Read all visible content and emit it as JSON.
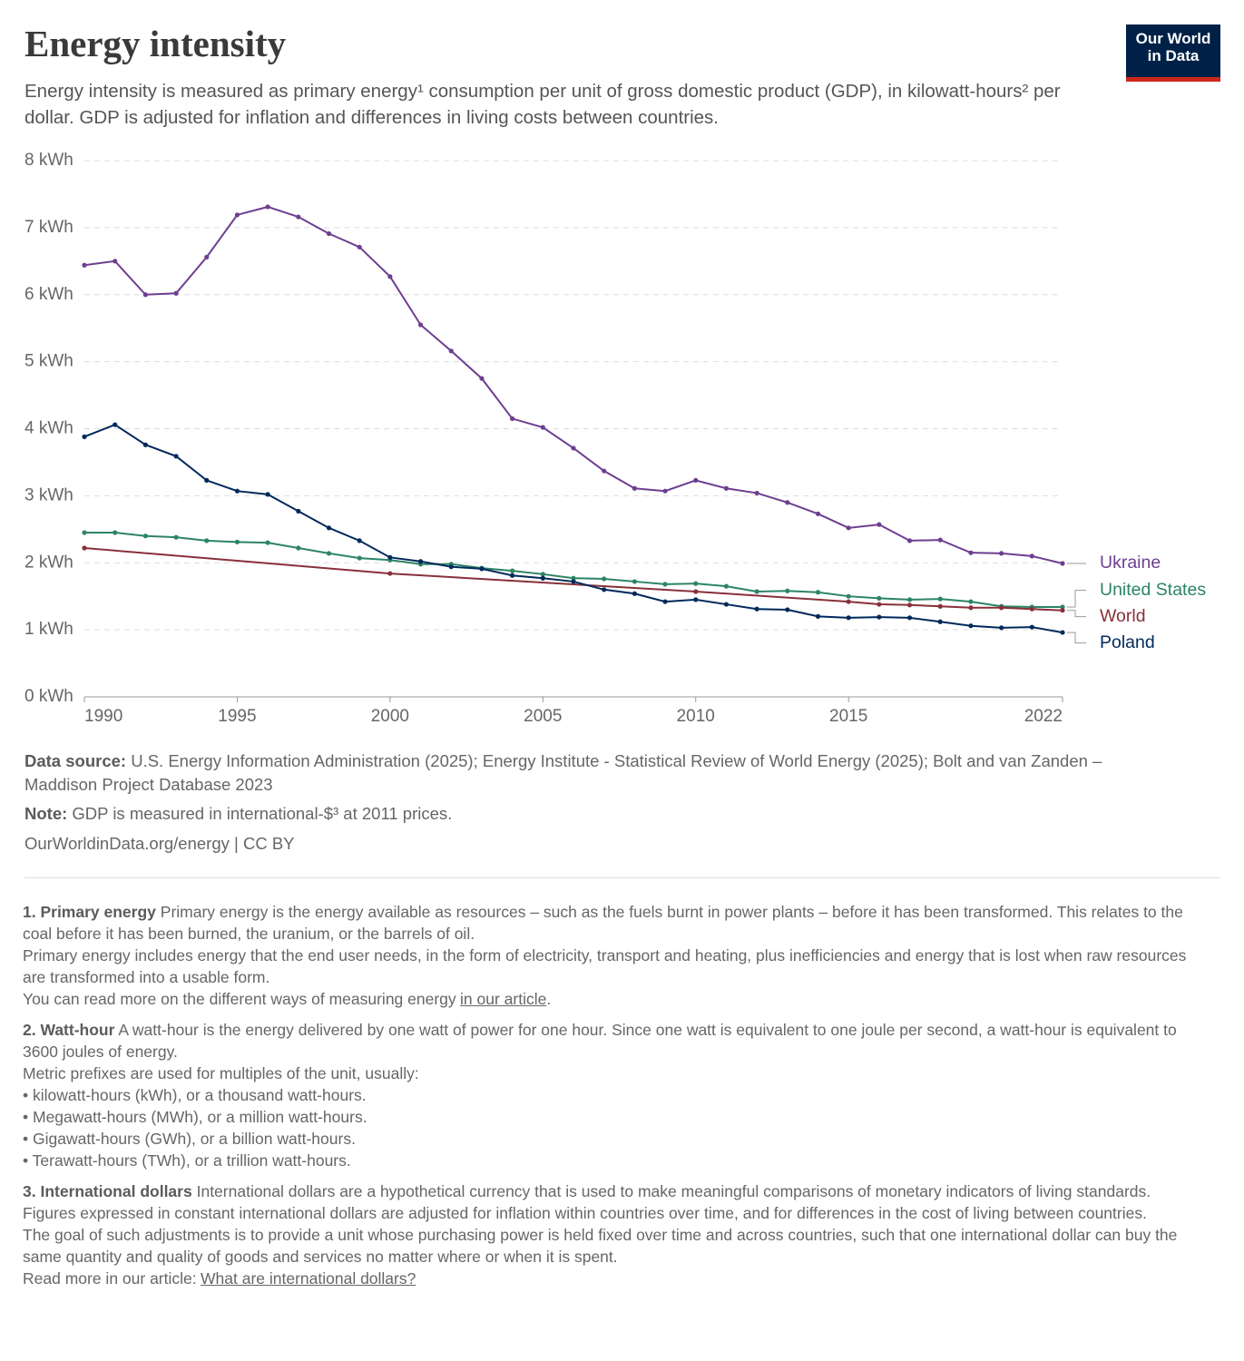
{
  "logo": [
    "Our World",
    "in Data"
  ],
  "chart_data": {
    "type": "line",
    "title": "Energy intensity",
    "subtitle": "Energy intensity is measured as primary energy¹ consumption per unit of gross domestic product (GDP), in kilowatt-hours² per dollar. GDP is adjusted for inflation and differences in living costs between countries.",
    "x": [
      1990,
      1991,
      1992,
      1993,
      1994,
      1995,
      1996,
      1997,
      1998,
      1999,
      2000,
      2001,
      2002,
      2003,
      2004,
      2005,
      2006,
      2007,
      2008,
      2009,
      2010,
      2011,
      2012,
      2013,
      2014,
      2015,
      2016,
      2017,
      2018,
      2019,
      2020,
      2021,
      2022
    ],
    "xlim": [
      1990,
      2022
    ],
    "xticks": [
      1990,
      1995,
      2000,
      2005,
      2010,
      2015,
      2022
    ],
    "ylim": [
      0,
      8
    ],
    "yticks": [
      {
        "value": 0,
        "label": "0 kWh"
      },
      {
        "value": 1,
        "label": "1 kWh"
      },
      {
        "value": 2,
        "label": "2 kWh"
      },
      {
        "value": 3,
        "label": "3 kWh"
      },
      {
        "value": 4,
        "label": "4 kWh"
      },
      {
        "value": 5,
        "label": "5 kWh"
      },
      {
        "value": 6,
        "label": "6 kWh"
      },
      {
        "value": 7,
        "label": "7 kWh"
      },
      {
        "value": 8,
        "label": "8 kWh"
      }
    ],
    "grid": true,
    "series": [
      {
        "name": "Ukraine",
        "color": "#6d3e91",
        "values": [
          6.44,
          6.5,
          6.0,
          6.02,
          6.56,
          7.19,
          7.31,
          7.16,
          6.91,
          6.71,
          6.27,
          5.55,
          5.16,
          4.75,
          4.15,
          4.02,
          3.71,
          3.37,
          3.11,
          3.07,
          3.23,
          3.11,
          3.04,
          2.9,
          2.73,
          2.52,
          2.57,
          2.33,
          2.34,
          2.15,
          2.14,
          2.1,
          1.99
        ]
      },
      {
        "name": "United States",
        "color": "#2c8465",
        "values": [
          2.45,
          2.45,
          2.4,
          2.38,
          2.33,
          2.31,
          2.3,
          2.22,
          2.14,
          2.07,
          2.04,
          1.98,
          1.98,
          1.92,
          1.88,
          1.83,
          1.77,
          1.76,
          1.72,
          1.68,
          1.69,
          1.65,
          1.57,
          1.58,
          1.56,
          1.5,
          1.47,
          1.45,
          1.46,
          1.42,
          1.35,
          1.34,
          1.34
        ]
      },
      {
        "name": "World",
        "color": "#883039",
        "x": [
          1990,
          2000,
          2010,
          2015,
          2016,
          2017,
          2018,
          2019,
          2020,
          2021,
          2022
        ],
        "values": [
          2.22,
          1.84,
          1.57,
          1.42,
          1.38,
          1.37,
          1.35,
          1.33,
          1.33,
          1.31,
          1.29
        ]
      },
      {
        "name": "Poland",
        "color": "#00295b",
        "values": [
          3.88,
          4.06,
          3.76,
          3.59,
          3.23,
          3.07,
          3.02,
          2.77,
          2.52,
          2.33,
          2.08,
          2.02,
          1.94,
          1.91,
          1.81,
          1.77,
          1.72,
          1.6,
          1.54,
          1.42,
          1.45,
          1.38,
          1.31,
          1.3,
          1.2,
          1.18,
          1.19,
          1.18,
          1.12,
          1.06,
          1.03,
          1.04,
          0.96
        ]
      }
    ],
    "source": {
      "label": "Data source:",
      "text": "U.S. Energy Information Administration (2025); Energy Institute - Statistical Review of World Energy (2025); Bolt and van Zanden – Maddison Project Database 2023"
    },
    "note": {
      "label": "Note:",
      "text": "GDP is measured in international-$³ at 2011 prices."
    },
    "url": "OurWorldinData.org/energy | CC BY"
  },
  "footnotes": [
    {
      "heading": "1. Primary energy",
      "paragraphs": [
        "Primary energy is the energy available as resources – such as the fuels burnt in power plants – before it has been transformed. This relates to the coal before it has been burned, the uranium, or the barrels of oil.",
        "Primary energy includes energy that the end user needs, in the form of electricity, transport and heating, plus inefficiencies and energy that is lost when raw resources are transformed into a usable form.",
        {
          "text": "You can read more on the different ways of measuring energy",
          "link": "in our article",
          "tail": "."
        }
      ]
    },
    {
      "heading": "2. Watt-hour",
      "paragraphs": [
        "A watt-hour is the energy delivered by one watt of power for one hour. Since one watt is equivalent to one joule per second, a watt-hour is equivalent to 3600 joules of energy.",
        "Metric prefixes are used for multiples of the unit, usually:",
        "• kilowatt-hours (kWh), or a thousand watt-hours.",
        "• Megawatt-hours (MWh), or a million watt-hours.",
        "• Gigawatt-hours (GWh), or a billion watt-hours.",
        "• Terawatt-hours (TWh), or a trillion watt-hours."
      ]
    },
    {
      "heading": "3. International dollars",
      "paragraphs": [
        "International dollars are a hypothetical currency that is used to make meaningful comparisons of monetary indicators of living standards.",
        "Figures expressed in constant international dollars are adjusted for inflation within countries over time, and for differences in the cost of living between countries.",
        "The goal of such adjustments is to provide a unit whose purchasing power is held fixed over time and across countries, such that one international dollar can buy the same quantity and quality of goods and services no matter where or when it is spent.",
        {
          "text": "Read more in our article:",
          "link": "What are international dollars?"
        }
      ]
    }
  ]
}
